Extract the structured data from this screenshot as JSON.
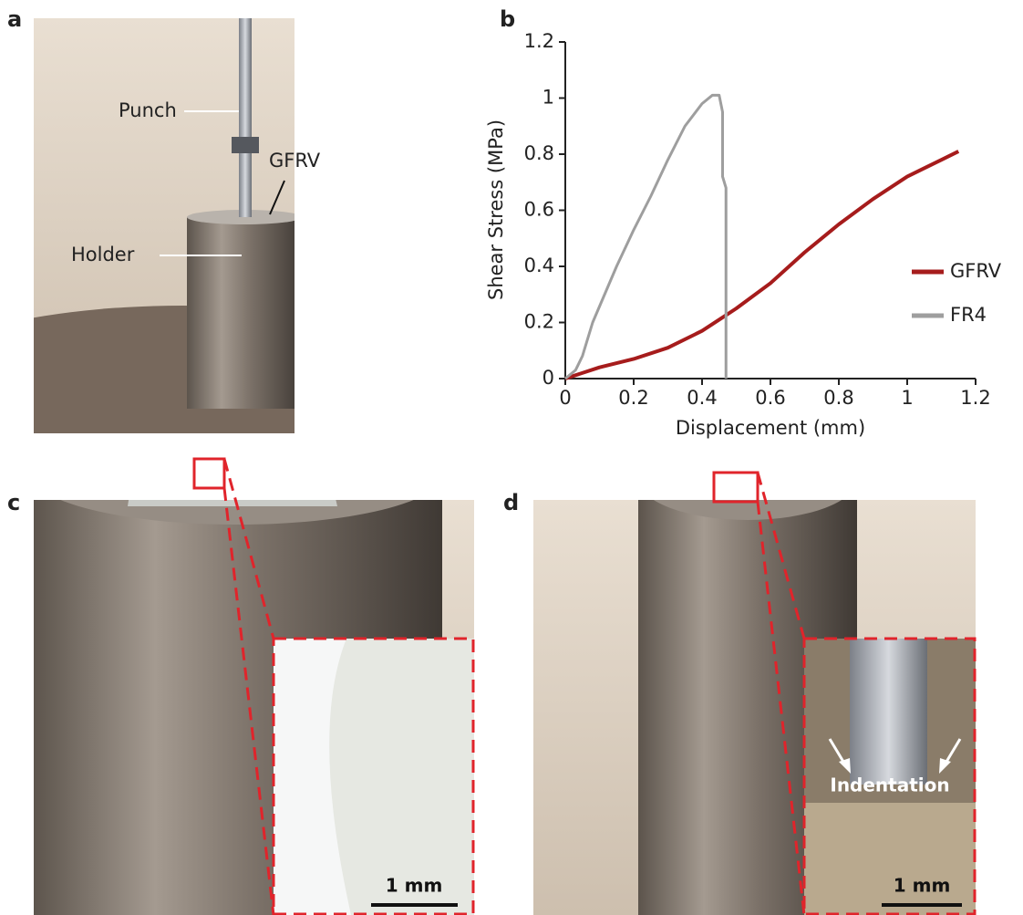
{
  "panel_labels": [
    "a",
    "b",
    "c",
    "d"
  ],
  "annotations": {
    "punch": "Punch",
    "gfrv": "GFRV",
    "holder": "Holder",
    "scale_c": "1 mm",
    "scale_d": "1 mm",
    "indentation": "Indentation"
  },
  "chart_data": {
    "type": "line",
    "x_label": "Displacement (mm)",
    "y_label": "Shear Stress (MPa)",
    "xlim": [
      0,
      1.2
    ],
    "xticks": [
      0,
      0.2,
      0.4,
      0.6,
      0.8,
      1,
      1.2
    ],
    "ylim": [
      0,
      1.2
    ],
    "yticks": [
      0,
      0.2,
      0.4,
      0.6,
      0.8,
      1,
      1.2
    ],
    "grid": false,
    "legend": "right",
    "series": [
      {
        "name": "GFRV",
        "color": "#a61c1c",
        "x": [
          0,
          0.1,
          0.2,
          0.3,
          0.4,
          0.45,
          0.5,
          0.6,
          0.7,
          0.8,
          0.9,
          1.0,
          1.1,
          1.15
        ],
        "values": [
          0,
          0.04,
          0.07,
          0.11,
          0.17,
          0.21,
          0.25,
          0.34,
          0.45,
          0.55,
          0.64,
          0.72,
          0.78,
          0.81
        ]
      },
      {
        "name": "FR4",
        "color": "#9e9e9e",
        "x": [
          0,
          0.03,
          0.05,
          0.08,
          0.15,
          0.2,
          0.25,
          0.3,
          0.35,
          0.4,
          0.43,
          0.45,
          0.46,
          0.46,
          0.47,
          0.47,
          0.47
        ],
        "values": [
          0,
          0.03,
          0.08,
          0.2,
          0.4,
          0.53,
          0.65,
          0.78,
          0.9,
          0.98,
          1.01,
          1.01,
          0.95,
          0.72,
          0.68,
          0.3,
          0
        ]
      }
    ]
  }
}
